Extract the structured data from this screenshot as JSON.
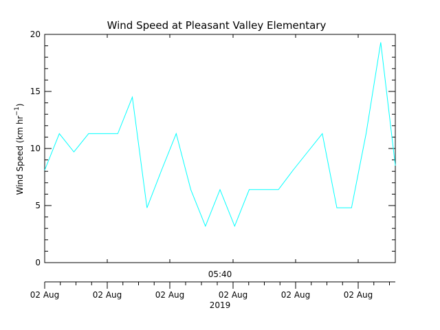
{
  "chart_data": {
    "type": "line",
    "title": "Wind Speed at Pleasant Valley Elementary",
    "ylabel": {
      "prefix": "Wind Speed (km hr",
      "superscript": "−1",
      "suffix": ")"
    },
    "ylim": [
      0,
      20
    ],
    "y_major_ticks": [
      0,
      5,
      10,
      15,
      20
    ],
    "y_tick_labels": [
      "0",
      "5",
      "10",
      "15",
      "20"
    ],
    "x_top_label": "05:40",
    "x_tick_labels": [
      "02 Aug",
      "02 Aug",
      "02 Aug",
      "02 Aug",
      "02 Aug",
      "02 Aug"
    ],
    "x_year_label": "2019",
    "grid": false,
    "series_color": "#00FFFF",
    "series": [
      {
        "values": [
          8.1,
          11.3,
          9.7,
          11.3,
          11.3,
          11.3,
          14.5,
          4.8,
          8.1,
          11.3,
          6.4,
          3.2,
          6.4,
          3.2,
          6.4,
          6.4,
          6.4,
          8.1,
          9.7,
          11.3,
          4.8,
          4.8,
          11.3,
          19.3,
          8.5
        ]
      }
    ]
  }
}
